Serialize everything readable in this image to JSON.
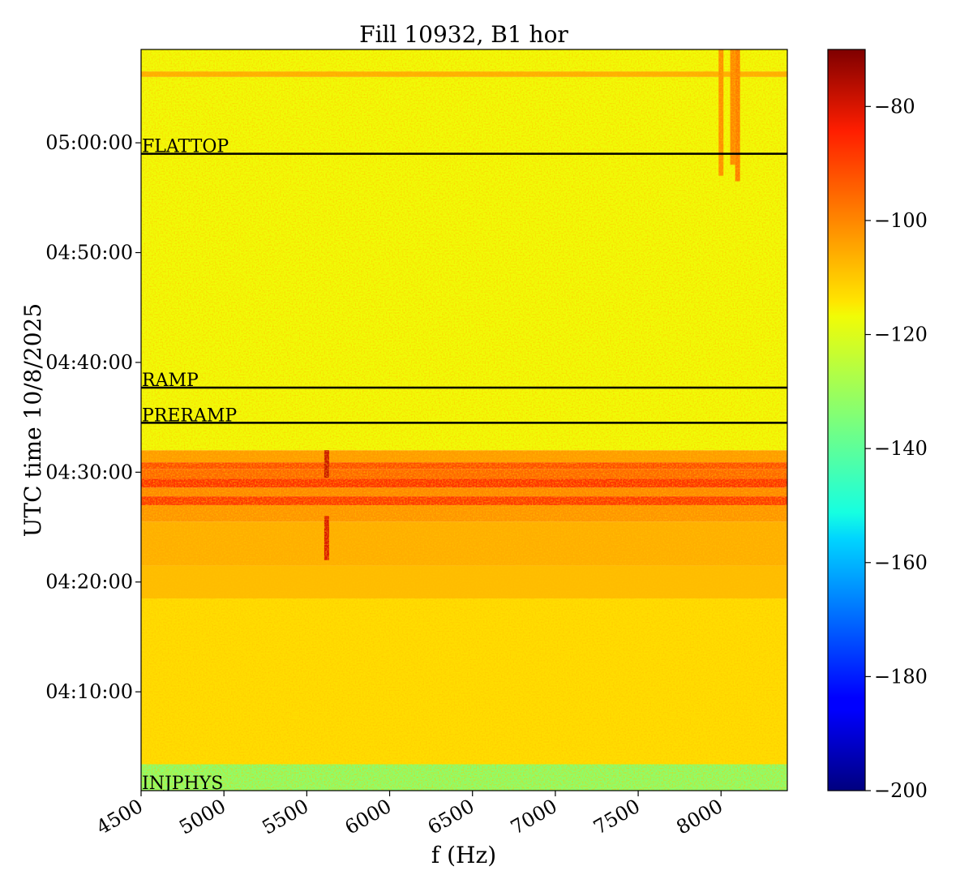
{
  "chart_data": {
    "type": "heatmap",
    "title": "Fill 10932, B1 hor",
    "xlabel": "f (Hz)",
    "ylabel": "UTC time 10/8/2025",
    "xlim": [
      4500,
      8400
    ],
    "ylim_minutes": [
      241.0,
      308.5
    ],
    "x_ticks": [
      {
        "value": 4500,
        "label": "4500"
      },
      {
        "value": 5000,
        "label": "5000"
      },
      {
        "value": 5500,
        "label": "5500"
      },
      {
        "value": 6000,
        "label": "6000"
      },
      {
        "value": 6500,
        "label": "6500"
      },
      {
        "value": 7000,
        "label": "7000"
      },
      {
        "value": 7500,
        "label": "7500"
      },
      {
        "value": 8000,
        "label": "8000"
      }
    ],
    "y_ticks": [
      {
        "value": 250,
        "label": "04:10:00"
      },
      {
        "value": 260,
        "label": "04:20:00"
      },
      {
        "value": 270,
        "label": "04:30:00"
      },
      {
        "value": 280,
        "label": "04:40:00"
      },
      {
        "value": 290,
        "label": "04:50:00"
      },
      {
        "value": 300,
        "label": "05:00:00"
      }
    ],
    "colorbar": {
      "colormap": "jet",
      "vmin": -200,
      "vmax": -70,
      "ticks": [
        {
          "value": -80,
          "label": "−80"
        },
        {
          "value": -100,
          "label": "−100"
        },
        {
          "value": -120,
          "label": "−120"
        },
        {
          "value": -140,
          "label": "−140"
        },
        {
          "value": -160,
          "label": "−160"
        },
        {
          "value": -180,
          "label": "−180"
        },
        {
          "value": -200,
          "label": "−200"
        }
      ]
    },
    "phase_markers": [
      {
        "label": "FLATTOP",
        "time": 299.0
      },
      {
        "label": "RAMP",
        "time": 277.7
      },
      {
        "label": "PRERAMP",
        "time": 274.5
      },
      {
        "label": "INJPHYS",
        "time": 241.0
      }
    ],
    "levels": [
      {
        "from": 241.0,
        "to": 243.4,
        "value": -133
      },
      {
        "from": 243.4,
        "to": 258.5,
        "value": -113
      },
      {
        "from": 258.5,
        "to": 261.5,
        "value": -108
      },
      {
        "from": 261.5,
        "to": 265.5,
        "value": -106
      },
      {
        "from": 265.5,
        "to": 267.0,
        "value": -102
      },
      {
        "from": 267.0,
        "to": 267.8,
        "value": -88
      },
      {
        "from": 267.8,
        "to": 268.6,
        "value": -100
      },
      {
        "from": 268.6,
        "to": 269.4,
        "value": -87
      },
      {
        "from": 269.4,
        "to": 270.3,
        "value": -95
      },
      {
        "from": 270.3,
        "to": 270.9,
        "value": -91
      },
      {
        "from": 270.9,
        "to": 272.0,
        "value": -103
      },
      {
        "from": 272.0,
        "to": 306.0,
        "value": -117
      },
      {
        "from": 306.0,
        "to": 306.5,
        "value": -106
      },
      {
        "from": 306.5,
        "to": 308.5,
        "value": -117
      }
    ],
    "line_features": [
      {
        "x": 5620,
        "from": 262.0,
        "to": 266.0,
        "value": -80
      },
      {
        "x": 5620,
        "from": 269.5,
        "to": 272.0,
        "value": -78
      },
      {
        "x": 8000,
        "from": 297.0,
        "to": 308.5,
        "value": -101
      },
      {
        "x": 8070,
        "from": 298.0,
        "to": 308.5,
        "value": -100
      },
      {
        "x": 8100,
        "from": 296.5,
        "to": 308.5,
        "value": -98
      }
    ]
  }
}
